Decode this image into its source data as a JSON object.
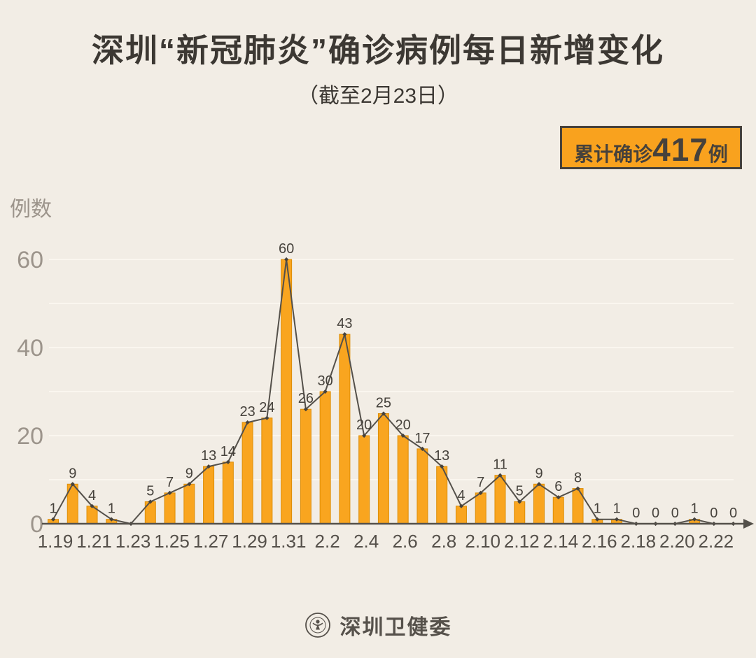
{
  "page": {
    "title": "深圳“新冠肺炎”确诊病例每日新增变化",
    "subtitle": "（截至2月23日）"
  },
  "badge": {
    "prefix": "累计确诊",
    "value": "417",
    "suffix": "例"
  },
  "footer": {
    "org": "深圳卫健委",
    "logo": "shenzhen-health-commission-seal"
  },
  "chart_data": {
    "type": "bar",
    "title": "深圳“新冠肺炎”确诊病例每日新增变化（截至2月23日）",
    "unit_label": "例数",
    "xlabel": "",
    "ylabel": "例数",
    "categories": [
      "1.19",
      "1.20",
      "1.21",
      "1.22",
      "1.23",
      "1.24",
      "1.25",
      "1.26",
      "1.27",
      "1.28",
      "1.29",
      "1.30",
      "1.31",
      "2.1",
      "2.2",
      "2.3",
      "2.4",
      "2.5",
      "2.6",
      "2.7",
      "2.8",
      "2.9",
      "2.10",
      "2.11",
      "2.12",
      "2.13",
      "2.14",
      "2.15",
      "2.16",
      "2.17",
      "2.18",
      "2.19",
      "2.20",
      "2.21",
      "2.22",
      "2.23"
    ],
    "values": [
      1,
      9,
      4,
      1,
      0,
      5,
      7,
      9,
      13,
      14,
      23,
      24,
      60,
      26,
      30,
      43,
      20,
      25,
      20,
      17,
      13,
      4,
      7,
      11,
      5,
      9,
      6,
      8,
      1,
      1,
      0,
      0,
      0,
      1,
      0,
      0
    ],
    "point_labels": [
      "1",
      "9",
      "4",
      "1",
      "",
      "5",
      "7",
      "9",
      "13",
      "14",
      "23",
      "24",
      "60",
      "26",
      "30",
      "43",
      "20",
      "25",
      "20",
      "17",
      "13",
      "4",
      "7",
      "11",
      "5",
      "9",
      "6",
      "8",
      "1",
      "1",
      "0",
      "0",
      "0",
      "1",
      "0",
      "0"
    ],
    "overlay_line": true,
    "cumulative_total": 417,
    "x_tick_indices": [
      0,
      2,
      4,
      6,
      8,
      10,
      12,
      14,
      16,
      18,
      20,
      22,
      24,
      26,
      28,
      30,
      32,
      34
    ],
    "x_tick_labels": [
      "1.19",
      "1.21",
      "1.23",
      "1.25",
      "1.27",
      "1.29",
      "1.31",
      "2.2",
      "2.4",
      "2.6",
      "2.8",
      "2.10",
      "2.12",
      "2.14",
      "2.16",
      "2.18",
      "2.20",
      "2.22"
    ],
    "y_ticks": [
      0,
      20,
      40,
      60
    ],
    "ylim": [
      0,
      64
    ],
    "grid_step": 10,
    "grid_on": true,
    "colors": {
      "background": "#F2EDE5",
      "bar_fill": "#F9A51F",
      "bar_border": "#DD8E07",
      "line": "#54504A",
      "marker": "#46423C",
      "value_label": "#46423C",
      "y_tick_label": "#9C948B",
      "x_tick_label": "#55504A",
      "axis": "#54504A",
      "gridline": "#FAF6EF",
      "badge_fill": "#F9A21E",
      "badge_border": "#46413B",
      "title_text": "#3C3833"
    }
  }
}
